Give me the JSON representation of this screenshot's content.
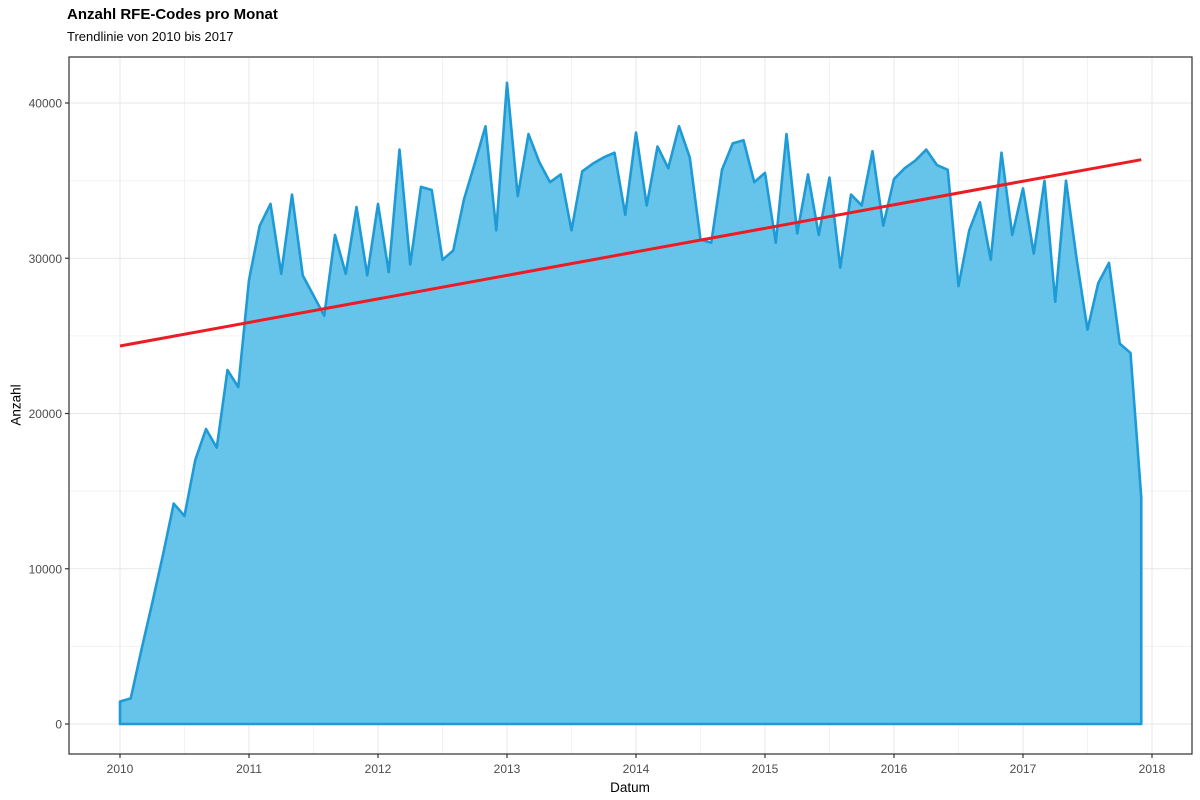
{
  "header": {
    "title": "Anzahl RFE-Codes pro Monat",
    "subtitle": "Trendlinie von 2010 bis 2017"
  },
  "chart_data": {
    "type": "area",
    "title": "Anzahl RFE-Codes pro Monat",
    "subtitle": "Trendlinie von 2010 bis 2017",
    "xlabel": "Datum",
    "ylabel": "Anzahl",
    "x_tick_labels": [
      "2010",
      "2011",
      "2012",
      "2013",
      "2014",
      "2015",
      "2016",
      "2017",
      "2018"
    ],
    "x_tick_years": [
      2010,
      2011,
      2012,
      2013,
      2014,
      2015,
      2016,
      2017,
      2018
    ],
    "y_tick_labels": [
      "0",
      "10000",
      "20000",
      "30000",
      "40000"
    ],
    "y_ticks": [
      0,
      10000,
      20000,
      30000,
      40000
    ],
    "y_minor_ticks": [
      5000,
      15000,
      25000,
      35000
    ],
    "x_minor_years": [
      2010.5,
      2011.5,
      2012.5,
      2013.5,
      2014.5,
      2015.5,
      2016.5,
      2017.5
    ],
    "xlim": [
      2009.6,
      2018.31
    ],
    "ylim": [
      -2000,
      43000
    ],
    "grid": true,
    "legend": "none",
    "months": [
      "2010-01",
      "2010-02",
      "2010-03",
      "2010-04",
      "2010-05",
      "2010-06",
      "2010-07",
      "2010-08",
      "2010-09",
      "2010-10",
      "2010-11",
      "2010-12",
      "2011-01",
      "2011-02",
      "2011-03",
      "2011-04",
      "2011-05",
      "2011-06",
      "2011-07",
      "2011-08",
      "2011-09",
      "2011-10",
      "2011-11",
      "2011-12",
      "2012-01",
      "2012-02",
      "2012-03",
      "2012-04",
      "2012-05",
      "2012-06",
      "2012-07",
      "2012-08",
      "2012-09",
      "2012-10",
      "2012-11",
      "2012-12",
      "2013-01",
      "2013-02",
      "2013-03",
      "2013-04",
      "2013-05",
      "2013-06",
      "2013-07",
      "2013-08",
      "2013-09",
      "2013-10",
      "2013-11",
      "2013-12",
      "2014-01",
      "2014-02",
      "2014-03",
      "2014-04",
      "2014-05",
      "2014-06",
      "2014-07",
      "2014-08",
      "2014-09",
      "2014-10",
      "2014-11",
      "2014-12",
      "2015-01",
      "2015-02",
      "2015-03",
      "2015-04",
      "2015-05",
      "2015-06",
      "2015-07",
      "2015-08",
      "2015-09",
      "2015-10",
      "2015-11",
      "2015-12",
      "2016-01",
      "2016-02",
      "2016-03",
      "2016-04",
      "2016-05",
      "2016-06",
      "2016-07",
      "2016-08",
      "2016-09",
      "2016-10",
      "2016-11",
      "2016-12",
      "2017-01",
      "2017-02",
      "2017-03",
      "2017-04",
      "2017-05",
      "2017-06",
      "2017-07",
      "2017-08",
      "2017-09",
      "2017-10",
      "2017-11",
      "2017-12"
    ],
    "values": [
      1450,
      1650,
      4800,
      7800,
      10900,
      14200,
      13400,
      17000,
      19000,
      17800,
      22800,
      21700,
      28600,
      32100,
      33500,
      29000,
      34100,
      28900,
      27600,
      26300,
      31500,
      29000,
      33300,
      28900,
      33500,
      29100,
      37000,
      29600,
      34600,
      34400,
      29900,
      30500,
      33800,
      36100,
      38500,
      31800,
      41300,
      34000,
      38000,
      36200,
      34900,
      35400,
      31800,
      35600,
      36100,
      36500,
      36800,
      32800,
      38100,
      33400,
      37200,
      35800,
      38500,
      36500,
      31200,
      31000,
      35700,
      37400,
      37600,
      34900,
      35500,
      31000,
      38000,
      31600,
      35400,
      31500,
      35200,
      29400,
      34100,
      33400,
      36900,
      32100,
      35100,
      35800,
      36300,
      37000,
      36000,
      35700,
      28200,
      31800,
      33600,
      29900,
      36800,
      31500,
      34500,
      30300,
      35000,
      27200,
      35000,
      29900,
      25400,
      28400,
      29700,
      24500,
      23900,
      14600
    ],
    "trendline": {
      "x_start": "2010-01",
      "y_start": 24350,
      "x_end": "2017-12",
      "y_end": 36350
    },
    "colors": {
      "area_fill": "#66C3E9",
      "area_line": "#1E9BD6",
      "trend_line": "#ED1C24",
      "grid_major": "#E7E7E7",
      "grid_minor": "#F2F2F2",
      "panel_border": "#2F2F2F",
      "tick_mark": "#333333",
      "tick_label": "#4D4D4D",
      "panel_bg": "#FFFFFF"
    }
  }
}
